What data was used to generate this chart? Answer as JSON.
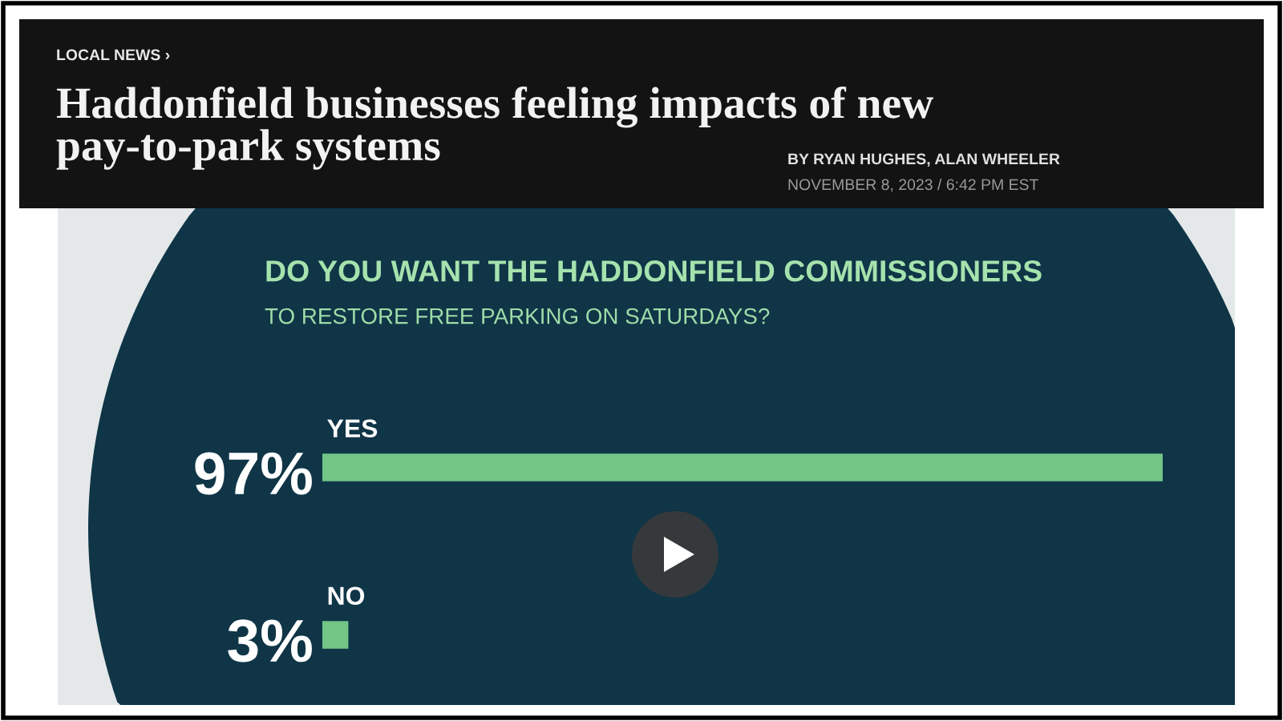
{
  "chart_data": {
    "type": "bar",
    "orientation": "horizontal",
    "title": "DO YOU WANT THE HADDONFIELD COMMISSIONERS",
    "subtitle": "TO RESTORE FREE PARKING ON SATURDAYS?",
    "categories": [
      "YES",
      "NO"
    ],
    "values": [
      97,
      3
    ],
    "value_labels": [
      "97%",
      "3%"
    ],
    "color": "#72c585",
    "annotations": [
      "LOCAL NEWS ›",
      "Haddonfield businesses feeling impacts of new pay-to-park systems",
      "BY RYAN HUGHES, ALAN WHEELER",
      "NOVEMBER 8, 2023 / 6:42 PM EST"
    ]
  }
}
